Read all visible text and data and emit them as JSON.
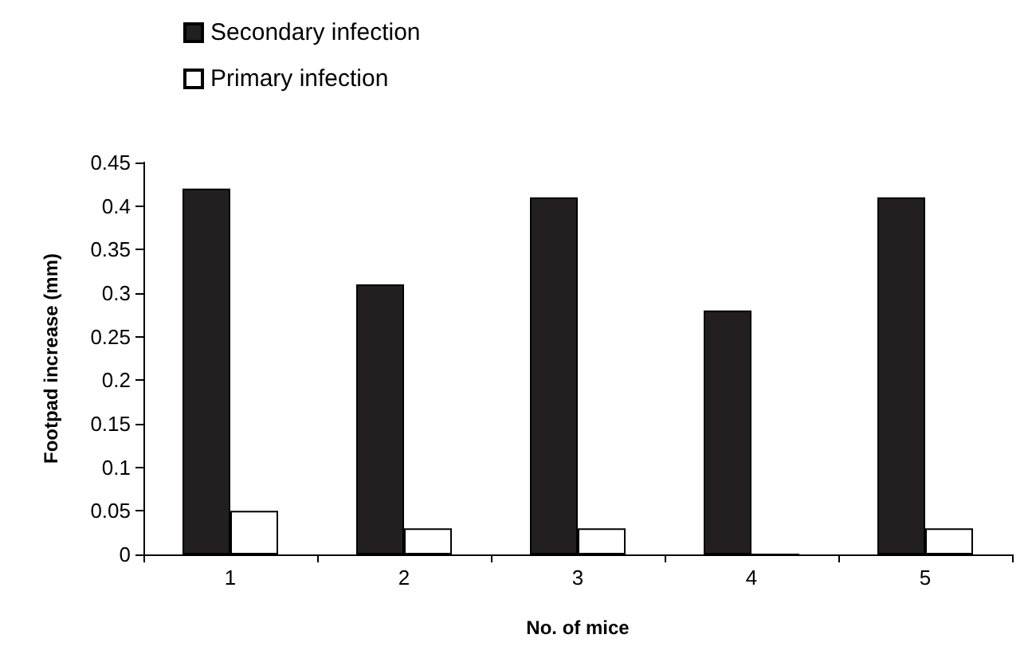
{
  "chart_data": {
    "type": "bar",
    "xlabel": "No. of mice",
    "ylabel": "Footpad increase (mm)",
    "categories": [
      "1",
      "2",
      "3",
      "4",
      "5"
    ],
    "series": [
      {
        "name": "Secondary infection",
        "color": "#231f20",
        "values": [
          0.42,
          0.31,
          0.41,
          0.28,
          0.41
        ]
      },
      {
        "name": "Primary infection",
        "color": "#ffffff",
        "values": [
          0.05,
          0.03,
          0.03,
          0,
          0.03
        ]
      }
    ],
    "ylim": [
      0,
      0.45
    ],
    "yticks": [
      0,
      0.05,
      0.1,
      0.15,
      0.2,
      0.25,
      0.3,
      0.35,
      0.4,
      0.45
    ],
    "grid": false,
    "legend": "top left"
  }
}
